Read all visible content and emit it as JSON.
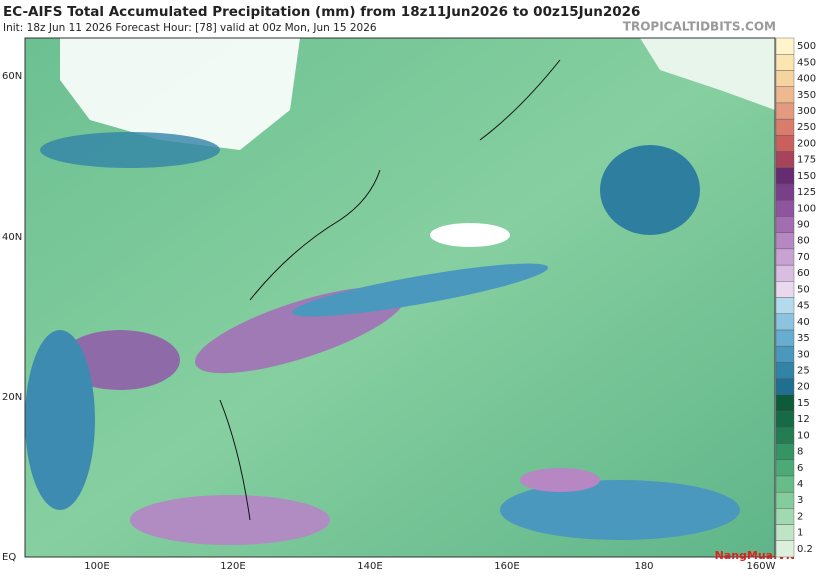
{
  "header": {
    "title": "EC-AIFS Total Accumulated Precipitation (mm) from 18z11Jun2026 to 00z15Jun2026",
    "subtitle": "Init: 18z Jun 11 2026   Forecast Hour: [78]   valid at 00z Mon, Jun 15 2026",
    "site": "TROPICALTIDBITS.COM"
  },
  "map": {
    "lat_labels": [
      "60N",
      "40N",
      "20N",
      "EQ"
    ],
    "lon_labels": [
      "100E",
      "120E",
      "140E",
      "160E",
      "180",
      "160W"
    ],
    "watermark": "NangMua.VN"
  },
  "colorbar": [
    {
      "label": "0.2",
      "color": "#dcefdc"
    },
    {
      "label": "1",
      "color": "#bfe5c6"
    },
    {
      "label": "2",
      "color": "#a1d9b1"
    },
    {
      "label": "3",
      "color": "#84cc9c"
    },
    {
      "label": "4",
      "color": "#67bd88"
    },
    {
      "label": "6",
      "color": "#4caa76"
    },
    {
      "label": "8",
      "color": "#349464"
    },
    {
      "label": "10",
      "color": "#227d52"
    },
    {
      "label": "12",
      "color": "#156b45"
    },
    {
      "label": "15",
      "color": "#0d5b3b"
    },
    {
      "label": "20",
      "color": "#1f6f90"
    },
    {
      "label": "25",
      "color": "#3283a8"
    },
    {
      "label": "30",
      "color": "#4a98be"
    },
    {
      "label": "35",
      "color": "#66adcf"
    },
    {
      "label": "40",
      "color": "#8bc3e0"
    },
    {
      "label": "45",
      "color": "#b4daee"
    },
    {
      "label": "50",
      "color": "#ead8ee"
    },
    {
      "label": "60",
      "color": "#dabde2"
    },
    {
      "label": "70",
      "color": "#c9a2d4"
    },
    {
      "label": "80",
      "color": "#b687c3"
    },
    {
      "label": "90",
      "color": "#a36db1"
    },
    {
      "label": "100",
      "color": "#8f549e"
    },
    {
      "label": "125",
      "color": "#7a3f89"
    },
    {
      "label": "150",
      "color": "#652c72"
    },
    {
      "label": "175",
      "color": "#a8435c"
    },
    {
      "label": "200",
      "color": "#c9605e"
    },
    {
      "label": "250",
      "color": "#d87d6c"
    },
    {
      "label": "300",
      "color": "#e49a7e"
    },
    {
      "label": "350",
      "color": "#efb990"
    },
    {
      "label": "400",
      "color": "#f6d4a0"
    },
    {
      "label": "450",
      "color": "#fbe6b2"
    },
    {
      "label": "500",
      "color": "#fff4cc"
    }
  ]
}
